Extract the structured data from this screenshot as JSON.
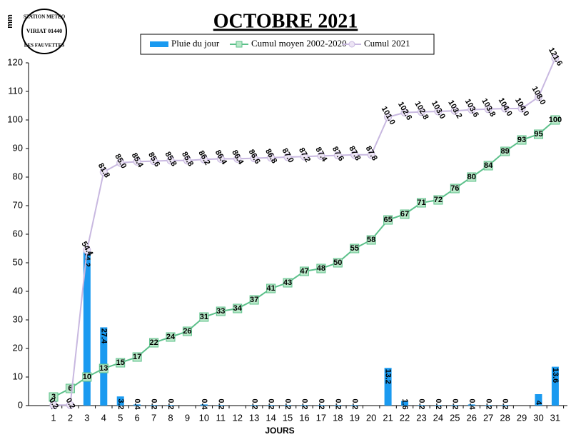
{
  "chart_data": {
    "type": "combo",
    "title": "OCTOBRE 2021",
    "y_label": "mm",
    "x_label": "JOURS",
    "annotations": [
      "STATION METEO",
      "VIRIAT 01440",
      "LES FAUVETTES"
    ],
    "categories": [
      1,
      2,
      3,
      4,
      5,
      6,
      7,
      8,
      9,
      10,
      11,
      12,
      13,
      14,
      15,
      16,
      17,
      18,
      19,
      20,
      21,
      22,
      23,
      24,
      25,
      26,
      27,
      28,
      29,
      30,
      31
    ],
    "series": [
      {
        "name": "Pluie du jour",
        "kind": "bar",
        "color": "#1a9af0",
        "values": [
          0.2,
          null,
          54.2,
          27.4,
          3.2,
          0.4,
          0.2,
          0.2,
          null,
          0.4,
          0.2,
          null,
          0.2,
          0.2,
          0.2,
          0.2,
          0.2,
          0.2,
          0.2,
          null,
          13.2,
          1.6,
          0.2,
          0.2,
          0.2,
          0.4,
          0.2,
          0.2,
          null,
          4,
          13.6
        ]
      },
      {
        "name": "Cumul moyen 2002-2020",
        "kind": "line",
        "color": "#5cc08a",
        "marker_fill": "#b8e8c8",
        "values": [
          3,
          6,
          10,
          13,
          15,
          17,
          22,
          24,
          26,
          31,
          33,
          34,
          37,
          41,
          43,
          47,
          48,
          50,
          55,
          58,
          65,
          67,
          71,
          72,
          76,
          80,
          84,
          89,
          93,
          95,
          100
        ]
      },
      {
        "name": "Cumul 2021",
        "kind": "line",
        "color": "#c8b8e0",
        "marker_fill": "#ece4f4",
        "values": [
          0.2,
          0.2,
          54.4,
          81.8,
          85.0,
          85.4,
          85.6,
          85.8,
          85.8,
          86.2,
          86.4,
          86.4,
          86.6,
          86.8,
          87.0,
          87.2,
          87.4,
          87.6,
          87.8,
          87.8,
          101.0,
          102.6,
          102.8,
          103.0,
          103.2,
          103.6,
          103.8,
          104.0,
          104.0,
          108.0,
          121.6
        ],
        "value_labels": [
          "0.2",
          "0.2",
          "54.4",
          "81.8",
          "85.0",
          "85.4",
          "85.6",
          "85.8",
          "85.8",
          "86.2",
          "86.4",
          "86.4",
          "86.6",
          "86.8",
          "87.0",
          "87.2",
          "87.4",
          "87.6",
          "87.8",
          "87.8",
          "101.0",
          "102.6",
          "102.8",
          "103.0",
          "103.2",
          "103.6",
          "103.8",
          "104.0",
          "104.0",
          "108.0",
          "121.6"
        ]
      }
    ],
    "ylim": [
      0,
      120
    ],
    "yticks": [
      0,
      10,
      20,
      30,
      40,
      50,
      60,
      70,
      80,
      90,
      100,
      110,
      120
    ]
  }
}
